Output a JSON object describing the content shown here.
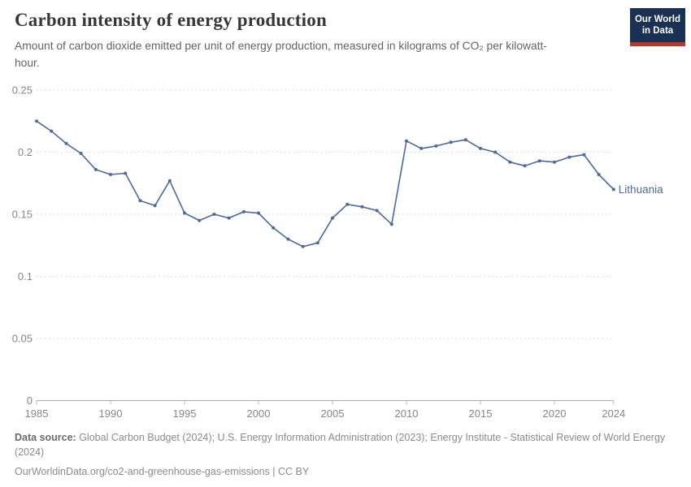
{
  "header": {
    "title": "Carbon intensity of energy production",
    "subtitle": "Amount of carbon dioxide emitted per unit of energy production, measured in kilograms of CO₂ per kilowatt-hour.",
    "logo": {
      "line1": "Our World",
      "line2": "in Data"
    }
  },
  "chart_data": {
    "type": "line",
    "title": "Carbon intensity of energy production",
    "x": [
      1985,
      1986,
      1987,
      1988,
      1989,
      1990,
      1991,
      1992,
      1993,
      1994,
      1995,
      1996,
      1997,
      1998,
      1999,
      2000,
      2001,
      2002,
      2003,
      2004,
      2005,
      2006,
      2007,
      2008,
      2009,
      2010,
      2011,
      2012,
      2013,
      2014,
      2015,
      2016,
      2017,
      2018,
      2019,
      2020,
      2021,
      2022,
      2023,
      2024
    ],
    "series": [
      {
        "name": "Lithuania",
        "color": "#4C6A9C",
        "values": [
          0.225,
          0.217,
          0.207,
          0.199,
          0.186,
          0.182,
          0.183,
          0.161,
          0.157,
          0.177,
          0.151,
          0.145,
          0.15,
          0.147,
          0.152,
          0.151,
          0.139,
          0.13,
          0.124,
          0.127,
          0.147,
          0.158,
          0.156,
          0.153,
          0.142,
          0.209,
          0.203,
          0.205,
          0.208,
          0.21,
          0.203,
          0.2,
          0.192,
          0.189,
          0.193,
          0.192,
          0.196,
          0.198,
          0.182,
          0.17
        ]
      }
    ],
    "xlabel": "",
    "ylabel": "kilograms of CO₂ per kilowatt-hour",
    "xlim": [
      1985,
      2024
    ],
    "ylim": [
      0,
      0.25
    ],
    "x_ticks": [
      1985,
      1990,
      1995,
      2000,
      2005,
      2010,
      2015,
      2020,
      2024
    ],
    "y_ticks": [
      0,
      0.05,
      0.1,
      0.15,
      0.2,
      0.25
    ],
    "grid": "horizontal-dashed",
    "legend_position": "end-of-line-label",
    "end_label": "Lithuania"
  },
  "footer": {
    "source_label": "Data source:",
    "source_text": " Global Carbon Budget (2024); U.S. Energy Information Administration (2023); Energy Institute - Statistical Review of World Energy (2024)",
    "url_line": "OurWorldinData.org/co2-and-greenhouse-gas-emissions | CC BY"
  },
  "colors": {
    "line": "#4C6A9C",
    "axis_label": "#878787",
    "gridline": "#dedede",
    "axis_line": "#adadad",
    "tick": "#b8b8b8",
    "title": "#373737",
    "subtitle": "#636363",
    "footer": "#8b8b8b",
    "logo_bg": "#1a3055",
    "logo_stripe": "#b5382c"
  }
}
